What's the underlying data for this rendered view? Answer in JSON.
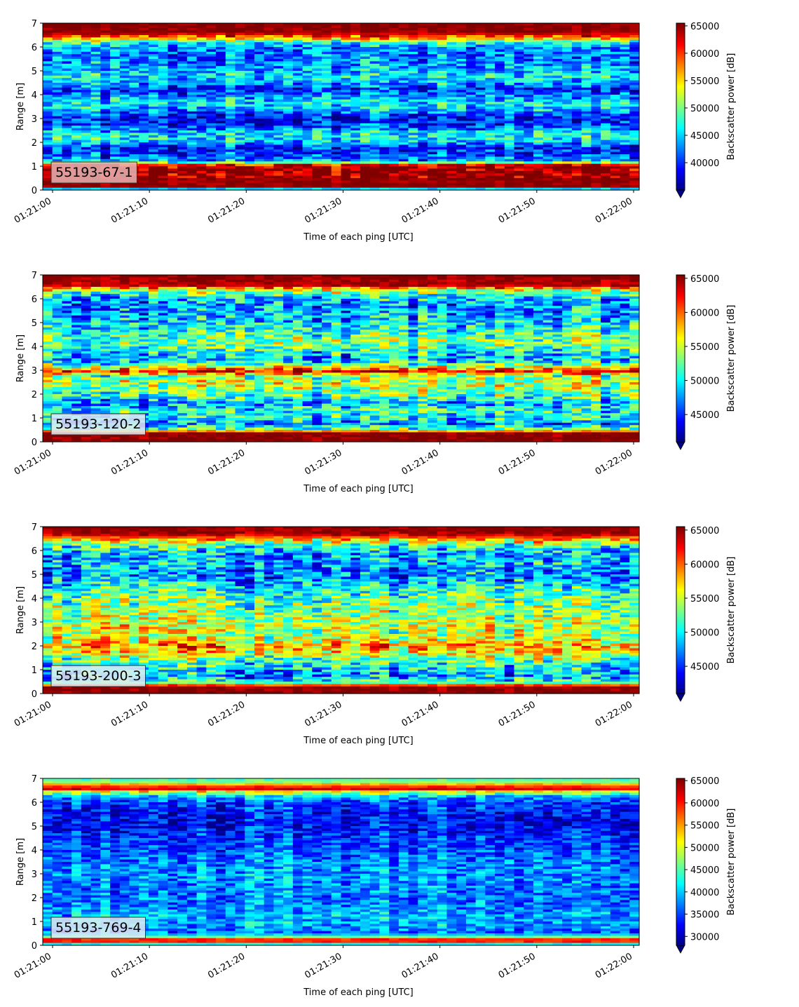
{
  "chart_data": [
    {
      "type": "heatmap",
      "label": "55193-67-1",
      "label_box_color": "#e8b4b4",
      "xlabel": "Time of each ping [UTC]",
      "ylabel": "Range [m]",
      "ylim": [
        0,
        7
      ],
      "y_ticks": [
        "0",
        "1",
        "2",
        "3",
        "4",
        "5",
        "6",
        "7"
      ],
      "x_ticks": [
        "01:21:00",
        "01:21:10",
        "01:21:20",
        "01:21:30",
        "01:21:40",
        "01:21:50",
        "01:22:00"
      ],
      "colorbar": {
        "label": "Backscatter power [dB]",
        "min": 35000,
        "max": 65500,
        "ticks": [
          "40000",
          "45000",
          "50000",
          "55000",
          "60000",
          "65000"
        ],
        "cmap": "jet",
        "extend": "min"
      },
      "range_profile_m": [
        [
          0.0,
          35000
        ],
        [
          0.15,
          65500
        ],
        [
          0.4,
          65000
        ],
        [
          0.9,
          65000
        ],
        [
          1.05,
          62000
        ],
        [
          1.2,
          44000
        ],
        [
          1.45,
          41000
        ],
        [
          1.75,
          39000
        ],
        [
          2.0,
          44000
        ],
        [
          2.2,
          47000
        ],
        [
          2.45,
          45000
        ],
        [
          2.65,
          41000
        ],
        [
          2.95,
          39000
        ],
        [
          3.15,
          40000
        ],
        [
          3.35,
          44000
        ],
        [
          3.6,
          46500
        ],
        [
          3.8,
          45000
        ],
        [
          4.05,
          41500
        ],
        [
          4.25,
          40000
        ],
        [
          4.5,
          44500
        ],
        [
          4.8,
          46000
        ],
        [
          5.1,
          44000
        ],
        [
          5.4,
          42500
        ],
        [
          5.7,
          42500
        ],
        [
          6.0,
          43000
        ],
        [
          6.2,
          48000
        ],
        [
          6.4,
          58000
        ],
        [
          6.6,
          65000
        ],
        [
          7.0,
          65500
        ]
      ]
    },
    {
      "type": "heatmap",
      "label": "55193-120-2",
      "label_box_color": "#e2ecf2",
      "xlabel": "Time of each ping [UTC]",
      "ylabel": "Range [m]",
      "ylim": [
        0,
        7
      ],
      "y_ticks": [
        "0",
        "1",
        "2",
        "3",
        "4",
        "5",
        "6",
        "7"
      ],
      "x_ticks": [
        "01:21:00",
        "01:21:10",
        "01:21:20",
        "01:21:30",
        "01:21:40",
        "01:21:50",
        "01:22:00"
      ],
      "colorbar": {
        "label": "Backscatter power [dB]",
        "min": 41000,
        "max": 65500,
        "ticks": [
          "45000",
          "50000",
          "55000",
          "60000",
          "65000"
        ],
        "cmap": "jet",
        "extend": "min"
      },
      "range_profile_m": [
        [
          0.0,
          65500
        ],
        [
          0.35,
          65500
        ],
        [
          0.55,
          52000
        ],
        [
          0.75,
          47000
        ],
        [
          1.0,
          50000
        ],
        [
          1.3,
          51000
        ],
        [
          1.6,
          48000
        ],
        [
          1.9,
          51500
        ],
        [
          2.2,
          53500
        ],
        [
          2.5,
          55000
        ],
        [
          2.75,
          53500
        ],
        [
          2.95,
          62000
        ],
        [
          3.1,
          57500
        ],
        [
          3.3,
          50000
        ],
        [
          3.55,
          48000
        ],
        [
          3.85,
          51500
        ],
        [
          4.2,
          53000
        ],
        [
          4.5,
          52000
        ],
        [
          4.8,
          50000
        ],
        [
          5.1,
          49000
        ],
        [
          5.4,
          48000
        ],
        [
          5.7,
          47500
        ],
        [
          6.0,
          48500
        ],
        [
          6.2,
          51500
        ],
        [
          6.4,
          56500
        ],
        [
          6.55,
          64000
        ],
        [
          7.0,
          65500
        ]
      ]
    },
    {
      "type": "heatmap",
      "label": "55193-200-3",
      "label_box_color": "#e2ecf2",
      "xlabel": "Time of each ping [UTC]",
      "ylabel": "Range [m]",
      "ylim": [
        0,
        7
      ],
      "y_ticks": [
        "0",
        "1",
        "2",
        "3",
        "4",
        "5",
        "6",
        "7"
      ],
      "x_ticks": [
        "01:21:00",
        "01:21:10",
        "01:21:20",
        "01:21:30",
        "01:21:40",
        "01:21:50",
        "01:22:00"
      ],
      "colorbar": {
        "label": "Backscatter power [dB]",
        "min": 41000,
        "max": 65500,
        "ticks": [
          "45000",
          "50000",
          "55000",
          "60000",
          "65000"
        ],
        "cmap": "jet",
        "extend": "min"
      },
      "range_profile_m": [
        [
          0.0,
          65500
        ],
        [
          0.3,
          65000
        ],
        [
          0.45,
          52000
        ],
        [
          0.7,
          48000
        ],
        [
          1.0,
          49000
        ],
        [
          1.3,
          51000
        ],
        [
          1.55,
          54000
        ],
        [
          1.8,
          57000
        ],
        [
          2.0,
          58500
        ],
        [
          2.2,
          55500
        ],
        [
          2.5,
          54500
        ],
        [
          2.8,
          55000
        ],
        [
          3.1,
          54000
        ],
        [
          3.4,
          53500
        ],
        [
          3.7,
          52500
        ],
        [
          4.0,
          52000
        ],
        [
          4.3,
          51000
        ],
        [
          4.6,
          49000
        ],
        [
          4.9,
          47000
        ],
        [
          5.2,
          47500
        ],
        [
          5.5,
          48000
        ],
        [
          5.8,
          48000
        ],
        [
          6.1,
          49500
        ],
        [
          6.3,
          54000
        ],
        [
          6.5,
          59000
        ],
        [
          6.7,
          65000
        ],
        [
          7.0,
          65500
        ]
      ]
    },
    {
      "type": "heatmap",
      "label": "55193-769-4",
      "label_box_color": "#e2ecf2",
      "xlabel": "Time of each ping [UTC]",
      "ylabel": "Range [m]",
      "ylim": [
        0,
        7
      ],
      "y_ticks": [
        "0",
        "1",
        "2",
        "3",
        "4",
        "5",
        "6",
        "7"
      ],
      "x_ticks": [
        "01:21:00",
        "01:21:10",
        "01:21:20",
        "01:21:30",
        "01:21:40",
        "01:21:50",
        "01:22:00"
      ],
      "colorbar": {
        "label": "Backscatter power [dB]",
        "min": 28000,
        "max": 65500,
        "ticks": [
          "30000",
          "35000",
          "40000",
          "45000",
          "50000",
          "55000",
          "60000",
          "65000"
        ],
        "cmap": "jet",
        "extend": "min"
      },
      "range_profile_m": [
        [
          0.0,
          28000
        ],
        [
          0.1,
          56000
        ],
        [
          0.22,
          64500
        ],
        [
          0.32,
          48000
        ],
        [
          0.5,
          37000
        ],
        [
          0.8,
          38500
        ],
        [
          1.2,
          39500
        ],
        [
          1.6,
          38000
        ],
        [
          2.0,
          37000
        ],
        [
          2.4,
          37500
        ],
        [
          2.8,
          38500
        ],
        [
          3.2,
          38000
        ],
        [
          3.6,
          37000
        ],
        [
          4.0,
          36000
        ],
        [
          4.4,
          35000
        ],
        [
          4.8,
          33500
        ],
        [
          5.2,
          32500
        ],
        [
          5.6,
          33500
        ],
        [
          6.0,
          35500
        ],
        [
          6.25,
          40000
        ],
        [
          6.45,
          52000
        ],
        [
          6.55,
          62000
        ],
        [
          6.7,
          58000
        ],
        [
          6.85,
          47000
        ],
        [
          7.0,
          44000
        ]
      ]
    }
  ]
}
